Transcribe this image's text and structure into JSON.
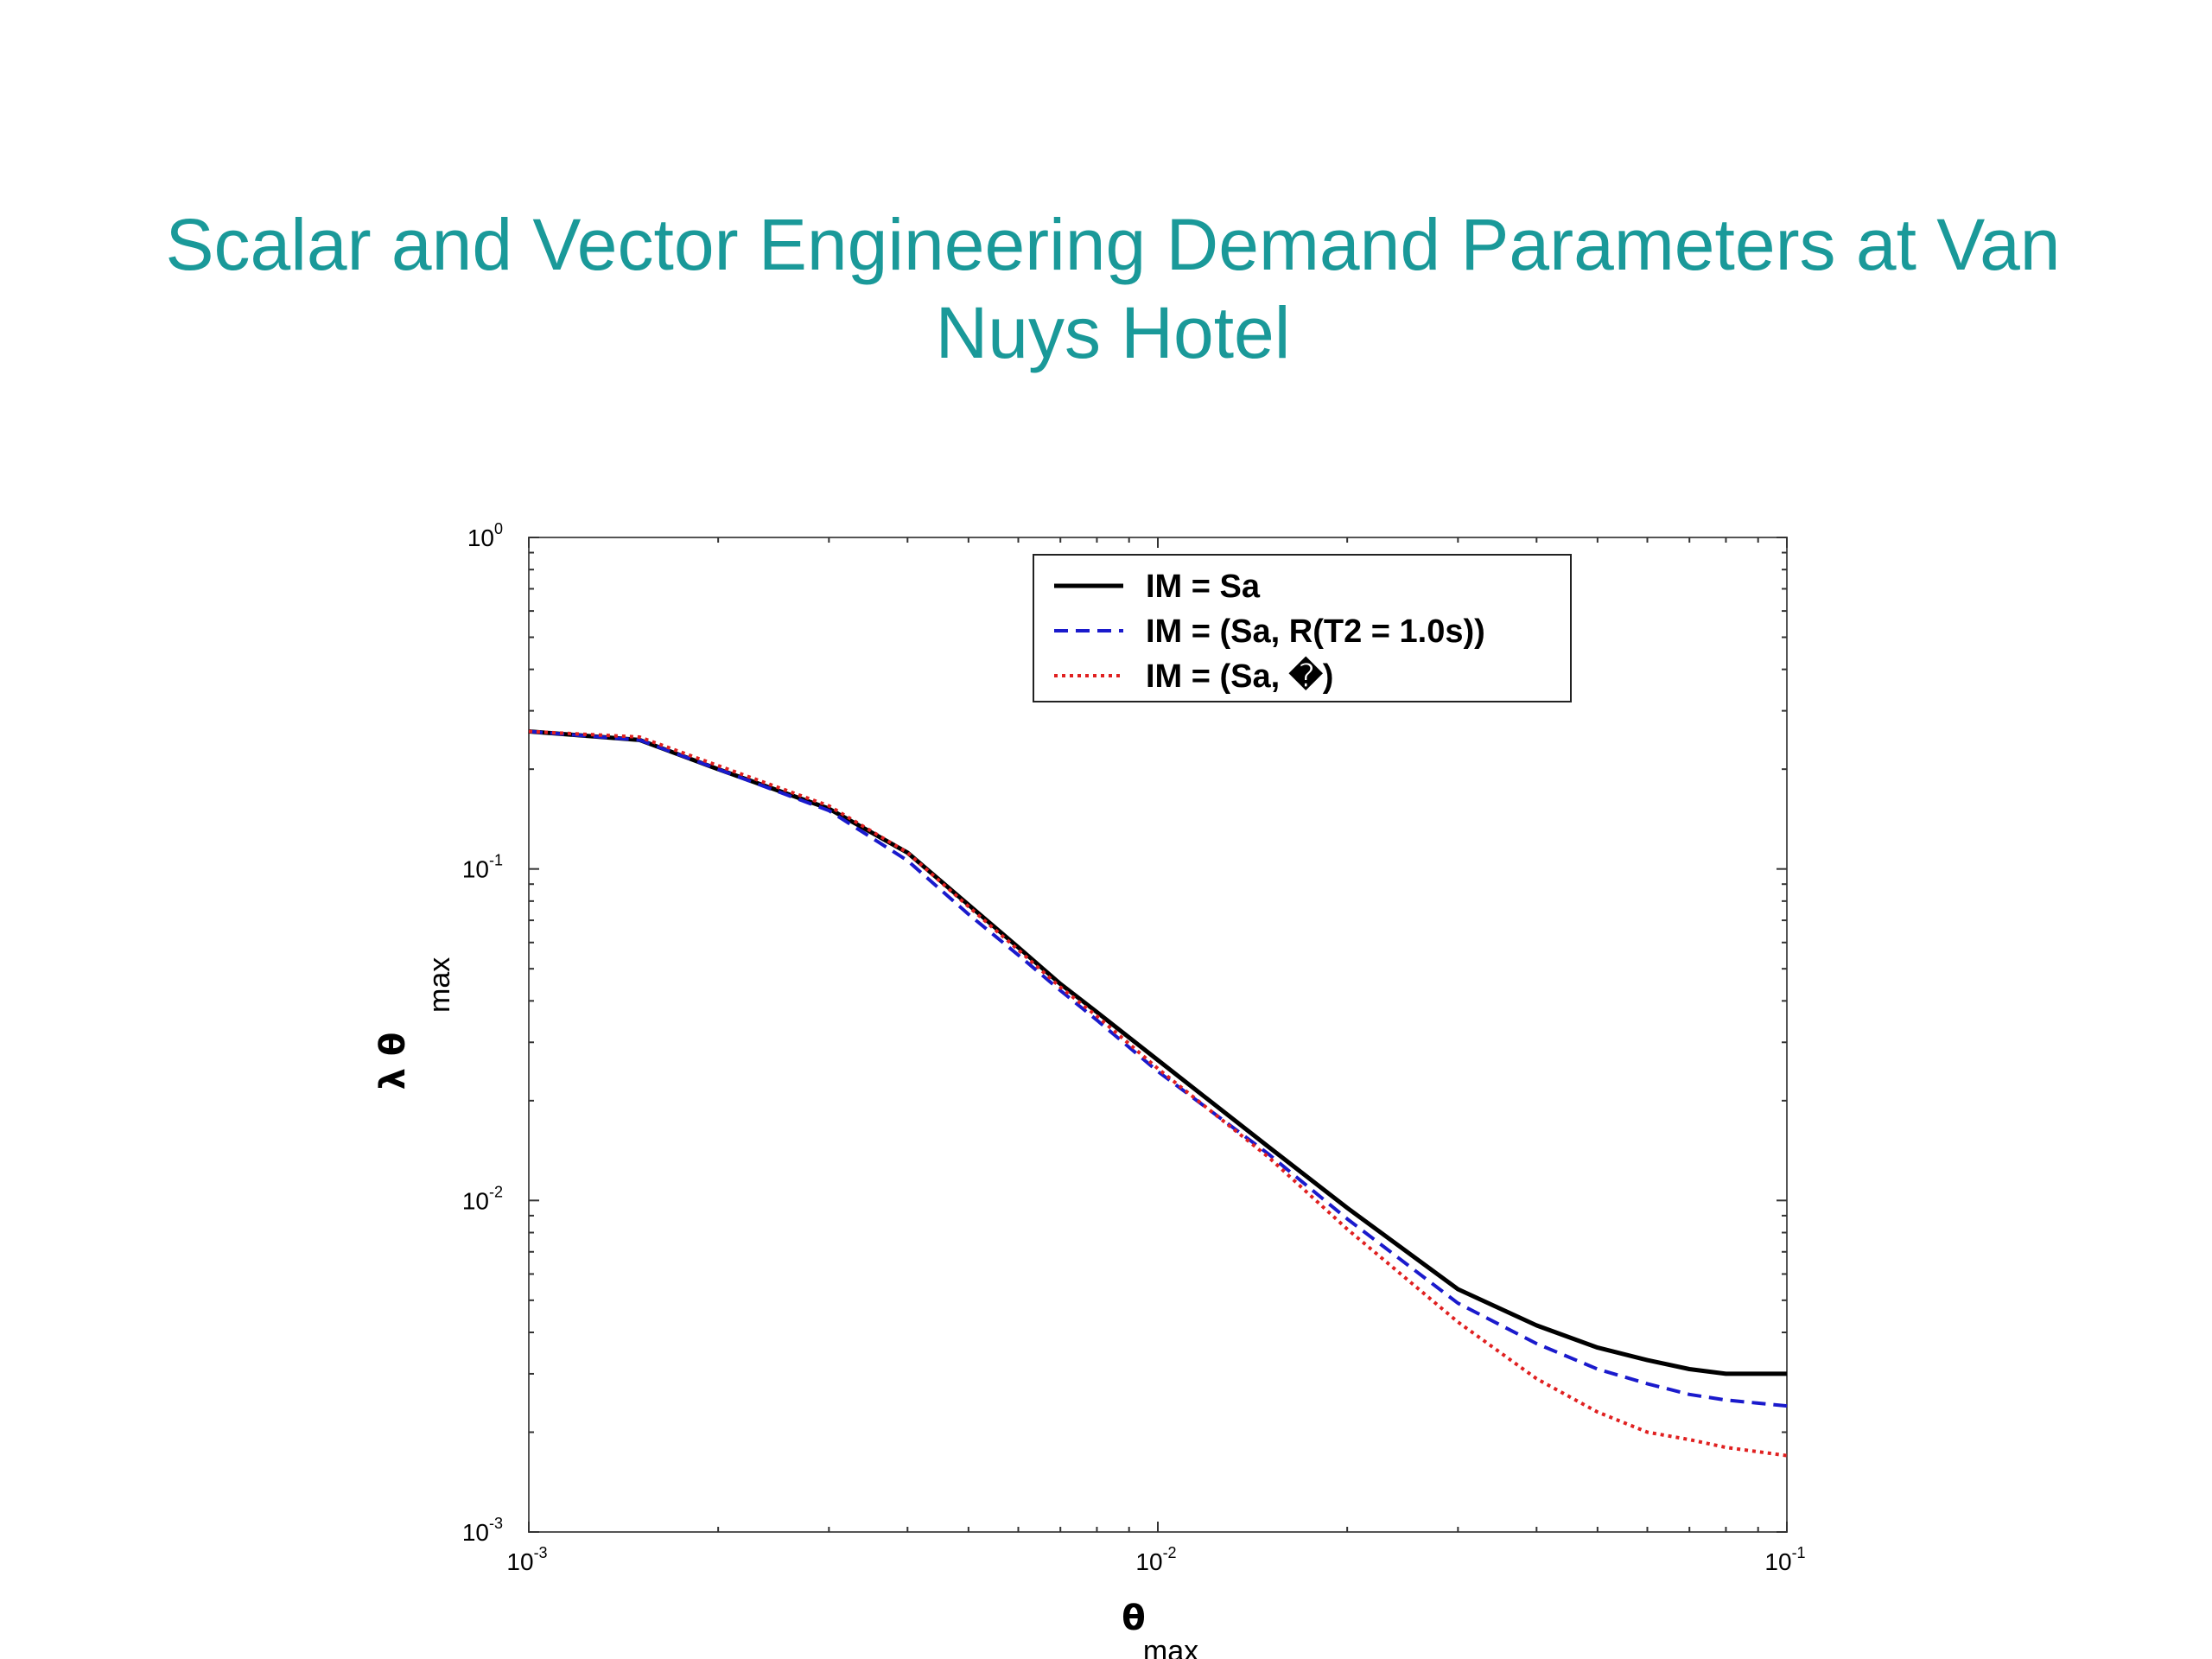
{
  "slide": {
    "title": "Scalar and Vector Engineering Demand Parameters at Van Nuys Hotel"
  },
  "colors": {
    "title": "#1a9999",
    "series": [
      "#000000",
      "#1a1acc",
      "#e02020"
    ]
  },
  "chart_data": {
    "type": "line",
    "xscale": "log",
    "yscale": "log",
    "xlim": [
      0.001,
      0.1
    ],
    "ylim": [
      0.001,
      1
    ],
    "grid": false,
    "legend_position": "top-center",
    "x_ticks": [
      {
        "base": "10",
        "exp": "-3",
        "value": 0.001
      },
      {
        "base": "10",
        "exp": "-2",
        "value": 0.01
      },
      {
        "base": "10",
        "exp": "-1",
        "value": 0.1
      }
    ],
    "y_ticks": [
      {
        "base": "10",
        "exp": "0",
        "value": 1
      },
      {
        "base": "10",
        "exp": "-1",
        "value": 0.1
      },
      {
        "base": "10",
        "exp": "-2",
        "value": 0.01
      },
      {
        "base": "10",
        "exp": "-3",
        "value": 0.001
      }
    ],
    "xlabel": {
      "symbol": "θ",
      "sub": "max"
    },
    "ylabel": {
      "symbol": "λ θ",
      "sub": "max"
    },
    "series": [
      {
        "name": "IM = Sa",
        "style": "solid",
        "x": [
          0.001,
          0.0015,
          0.002,
          0.003,
          0.004,
          0.005,
          0.006,
          0.007,
          0.008,
          0.01,
          0.015,
          0.02,
          0.03,
          0.04,
          0.05,
          0.06,
          0.07,
          0.08,
          0.1
        ],
        "y": [
          0.26,
          0.245,
          0.2,
          0.152,
          0.112,
          0.078,
          0.058,
          0.045,
          0.037,
          0.0265,
          0.0145,
          0.0095,
          0.0054,
          0.0042,
          0.0036,
          0.0033,
          0.0031,
          0.003,
          0.003
        ]
      },
      {
        "name": "IM = (Sa, R(T2 = 1.0s))",
        "style": "dashed",
        "x": [
          0.001,
          0.0015,
          0.002,
          0.003,
          0.004,
          0.005,
          0.006,
          0.007,
          0.008,
          0.01,
          0.015,
          0.02,
          0.03,
          0.04,
          0.05,
          0.06,
          0.07,
          0.08,
          0.1
        ],
        "y": [
          0.26,
          0.245,
          0.2,
          0.15,
          0.106,
          0.073,
          0.055,
          0.043,
          0.035,
          0.0245,
          0.0138,
          0.0088,
          0.0049,
          0.0037,
          0.0031,
          0.0028,
          0.0026,
          0.0025,
          0.0024
        ]
      },
      {
        "name": "IM = (Sa, �)",
        "style": "dotted",
        "x": [
          0.001,
          0.0015,
          0.002,
          0.003,
          0.004,
          0.005,
          0.006,
          0.007,
          0.008,
          0.01,
          0.015,
          0.02,
          0.03,
          0.04,
          0.05,
          0.06,
          0.07,
          0.08,
          0.1
        ],
        "y": [
          0.26,
          0.25,
          0.205,
          0.155,
          0.112,
          0.077,
          0.057,
          0.044,
          0.036,
          0.025,
          0.0135,
          0.0082,
          0.0043,
          0.0029,
          0.0023,
          0.002,
          0.0019,
          0.0018,
          0.0017
        ]
      }
    ]
  }
}
